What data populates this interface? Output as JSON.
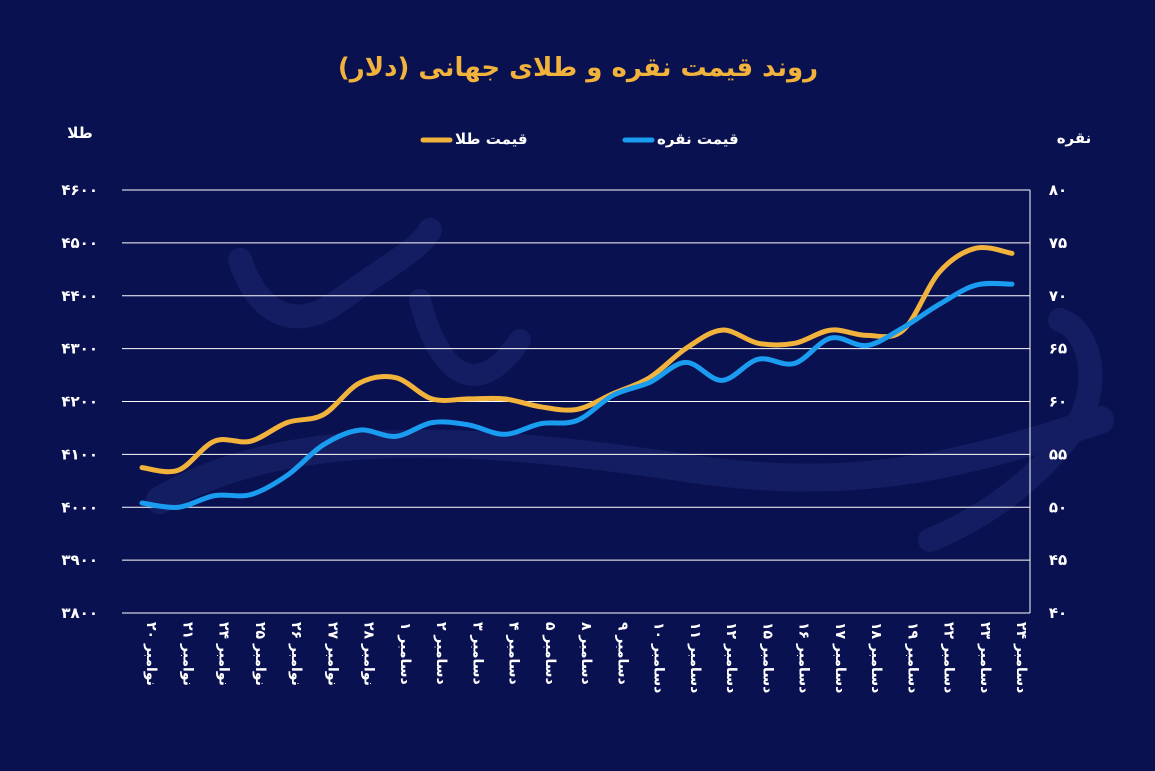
{
  "chart_data": {
    "type": "line",
    "title": "روند قیمت نقره و طلای جهانی (دلار)",
    "y_left_label": "طلا",
    "y_right_label": "نقره",
    "legend_placement": "top-center",
    "grid": true,
    "categories": [
      "۲۰ نوامبر",
      "۲۱ نوامبر",
      "۲۴ نوامبر",
      "۲۵ نوامبر",
      "۲۶ نوامبر",
      "۲۷ نوامبر",
      "۲۸ نوامبر",
      "۱ دسامبر",
      "۲ دسامبر",
      "۳ دسامبر",
      "۴ دسامبر",
      "۵ دسامبر",
      "۸ دسامبر",
      "۹ دسامبر",
      "۱۰ دسامبر",
      "۱۱ دسامبر",
      "۱۲ دسامبر",
      "۱۵ دسامبر",
      "۱۶ دسامبر",
      "۱۷ دسامبر",
      "۱۸ دسامبر",
      "۱۹ دسامبر",
      "۲۲ دسامبر",
      "۲۳ دسامبر",
      "۲۴ دسامبر"
    ],
    "y_left": {
      "min": 3800,
      "max": 4600,
      "ticks": [
        "۴۶۰۰",
        "۴۵۰۰",
        "۴۴۰۰",
        "۴۳۰۰",
        "۴۲۰۰",
        "۴۱۰۰",
        "۴۰۰۰",
        "۳۹۰۰",
        "۳۸۰۰"
      ]
    },
    "y_right": {
      "min": 40,
      "max": 80,
      "ticks": [
        "۸۰",
        "۷۵",
        "۷۰",
        "۶۵",
        "۶۰",
        "۵۵",
        "۵۰",
        "۴۵",
        "۴۰"
      ]
    },
    "series": [
      {
        "name": "قیمت طلا",
        "axis": "left",
        "color": "#f2b33d",
        "values": [
          4075,
          4070,
          4125,
          4125,
          4160,
          4175,
          4235,
          4245,
          4205,
          4205,
          4205,
          4190,
          4185,
          4215,
          4245,
          4300,
          4335,
          4310,
          4310,
          4335,
          4325,
          4335,
          4445,
          4490,
          4480
        ]
      },
      {
        "name": "قیمت نقره",
        "axis": "right",
        "color": "#1a9cf0",
        "values": [
          50.4,
          50.0,
          51.1,
          51.2,
          53.0,
          55.9,
          57.3,
          56.7,
          58.0,
          57.8,
          56.9,
          57.9,
          58.2,
          60.6,
          61.8,
          63.7,
          62.0,
          64.0,
          63.6,
          66.0,
          65.3,
          67.0,
          69.2,
          71.0,
          71.1
        ]
      }
    ]
  }
}
